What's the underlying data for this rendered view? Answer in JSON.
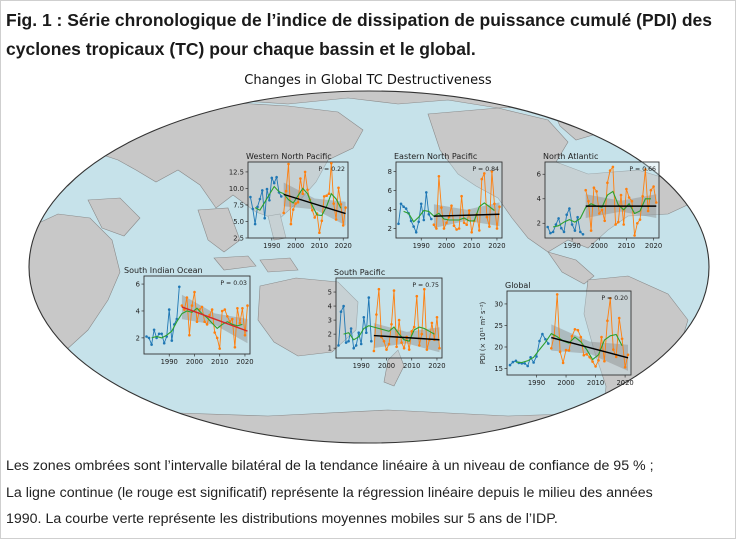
{
  "figure": {
    "title_line1": "Fig. 1 : Série chronologique de l’indice de dissipation de puissance cumulé (PDI) des",
    "title_line2": "cyclones tropicaux (TC) pour chaque bassin et le global.",
    "map_title": "Changes in Global TC Destructiveness",
    "caption_line1": "Les zones ombrées sont l’intervalle bilatéral de la tendance linéaire à un niveau de confiance de 95 % ;",
    "caption_line2": "La ligne continue (le rouge est significatif) représente la régression linéaire depuis le milieu des années",
    "caption_line3": "1990. La courbe verte représente les distributions moyennes mobiles sur 5 ans de l’IDP."
  },
  "colors": {
    "ocean": "#c6e2ea",
    "land": "#c8c8c8",
    "early_series": "#1f77b4",
    "late_series": "#ff7f0e",
    "moving_average": "#2ca02c",
    "trend_significant": "#d62728",
    "trend_not_significant": "#000000",
    "confidence_band": "#8c8c8c"
  },
  "chart_data": [
    {
      "type": "line",
      "title": "Western North Pacific",
      "p_label": "P = 0.22",
      "significant": false,
      "xlim": [
        1980,
        2022
      ],
      "ylim": [
        2.5,
        14
      ],
      "xticks": [
        1990,
        2000,
        2010,
        2020
      ],
      "xtick_labels": [
        "1990",
        "2000",
        "2010",
        "2020"
      ],
      "yticks": [
        2.5,
        5.0,
        7.5,
        10.0,
        12.5
      ],
      "ytick_labels": [
        "2.5",
        "5.0",
        "7.5",
        "10.0",
        "12.5"
      ],
      "series": [
        {
          "x": [
            1981,
            1982,
            1983,
            1984,
            1985,
            1986,
            1987,
            1988,
            1989,
            1990,
            1991,
            1992,
            1993,
            1994
          ],
          "values": [
            8.7,
            6.9,
            4.6,
            7.2,
            8.4,
            9.7,
            5.5,
            9.9,
            8.2,
            11.6,
            10.8,
            11.7,
            9.4,
            8.8
          ]
        },
        {
          "x": [
            1995,
            1996,
            1997,
            1998,
            1999,
            2000,
            2001,
            2002,
            2003,
            2004,
            2005,
            2006,
            2007,
            2008,
            2009,
            2010,
            2011,
            2012,
            2013,
            2014,
            2015,
            2016,
            2017,
            2018,
            2019,
            2020,
            2021
          ],
          "values": [
            6.3,
            9.6,
            13.7,
            4.6,
            6.8,
            7.7,
            7.9,
            11.5,
            9.2,
            12.5,
            9.8,
            8.3,
            6.7,
            5.6,
            6.2,
            3.3,
            5.1,
            8.8,
            8.9,
            9.2,
            13.8,
            7.7,
            5.3,
            10.1,
            7.6,
            4.4,
            7.1
          ]
        },
        {
          "x": [
            1983,
            1985,
            1987,
            1989,
            1991,
            1993,
            1995,
            1997,
            1999,
            2001,
            2003,
            2005,
            2007,
            2009,
            2011,
            2013,
            2015,
            2017,
            2019
          ],
          "values": [
            7.1,
            6.7,
            7.9,
            9.1,
            10.3,
            9.5,
            9.2,
            8.3,
            7.8,
            8.9,
            10.0,
            9.2,
            7.4,
            6.0,
            5.9,
            7.3,
            9.2,
            8.4,
            7.0
          ]
        }
      ],
      "trend": {
        "x": [
          1995,
          2021
        ],
        "values": [
          9.1,
          6.2
        ]
      }
    },
    {
      "type": "line",
      "title": "Eastern North Pacific",
      "p_label": "P = 0.84",
      "significant": false,
      "xlim": [
        1980,
        2022
      ],
      "ylim": [
        1,
        9
      ],
      "xticks": [
        1990,
        2000,
        2010,
        2020
      ],
      "xtick_labels": [
        "1990",
        "2000",
        "2010",
        "2020"
      ],
      "yticks": [
        2,
        4,
        6,
        8
      ],
      "ytick_labels": [
        "2",
        "4",
        "6",
        "8"
      ],
      "series": [
        {
          "x": [
            1981,
            1982,
            1983,
            1984,
            1985,
            1986,
            1987,
            1988,
            1989,
            1990,
            1991,
            1992,
            1993,
            1994
          ],
          "values": [
            2.5,
            4.6,
            4.3,
            4.1,
            3.6,
            2.8,
            2.2,
            1.6,
            2.7,
            4.6,
            2.9,
            5.8,
            3.5,
            3.0
          ]
        },
        {
          "x": [
            1995,
            1996,
            1997,
            1998,
            1999,
            2000,
            2001,
            2002,
            2003,
            2004,
            2005,
            2006,
            2007,
            2008,
            2009,
            2010,
            2011,
            2012,
            2013,
            2014,
            2015,
            2016,
            2017,
            2018,
            2019,
            2020,
            2021
          ],
          "values": [
            2.4,
            2.0,
            7.5,
            4.2,
            2.0,
            2.6,
            3.2,
            4.4,
            2.3,
            1.9,
            2.0,
            5.4,
            2.6,
            2.4,
            3.9,
            1.6,
            2.8,
            3.5,
            1.8,
            7.2,
            7.8,
            3.2,
            2.2,
            8.0,
            4.6,
            2.0,
            4.3
          ]
        },
        {
          "x": [
            1983,
            1985,
            1987,
            1989,
            1991,
            1993,
            1995,
            1997,
            1999,
            2001,
            2003,
            2005,
            2007,
            2009,
            2011,
            2013,
            2015,
            2017,
            2019
          ],
          "values": [
            3.8,
            3.6,
            2.7,
            3.2,
            3.9,
            3.8,
            3.3,
            3.6,
            3.0,
            2.9,
            2.9,
            2.9,
            3.1,
            2.8,
            2.8,
            4.3,
            4.7,
            4.3,
            3.9
          ]
        }
      ],
      "trend": {
        "x": [
          1995,
          2021
        ],
        "values": [
          3.3,
          3.5
        ]
      }
    },
    {
      "type": "line",
      "title": "North Atlantic",
      "p_label": "P = 0.66",
      "significant": false,
      "xlim": [
        1980,
        2022
      ],
      "ylim": [
        0.8,
        7
      ],
      "xticks": [
        1990,
        2000,
        2010,
        2020
      ],
      "xtick_labels": [
        "1990",
        "2000",
        "2010",
        "2020"
      ],
      "yticks": [
        2,
        4,
        6
      ],
      "ytick_labels": [
        "2",
        "4",
        "6"
      ],
      "series": [
        {
          "x": [
            1981,
            1982,
            1983,
            1984,
            1985,
            1986,
            1987,
            1988,
            1989,
            1990,
            1991,
            1992,
            1993,
            1994
          ],
          "values": [
            1.7,
            1.2,
            1.3,
            1.9,
            2.4,
            1.6,
            1.3,
            2.7,
            3.2,
            1.9,
            1.4,
            2.5,
            1.3,
            1.1
          ]
        },
        {
          "x": [
            1995,
            1996,
            1997,
            1998,
            1999,
            2000,
            2001,
            2002,
            2003,
            2004,
            2005,
            2006,
            2007,
            2008,
            2009,
            2010,
            2011,
            2012,
            2013,
            2014,
            2015,
            2016,
            2017,
            2018,
            2019,
            2020,
            2021
          ],
          "values": [
            4.7,
            3.8,
            1.4,
            4.9,
            4.6,
            2.8,
            3.1,
            2.2,
            5.3,
            6.3,
            6.6,
            1.9,
            2.1,
            4.3,
            1.9,
            4.8,
            4.1,
            3.8,
            1.0,
            2.0,
            2.3,
            4.2,
            6.4,
            3.0,
            4.7,
            5.0,
            3.7
          ]
        },
        {
          "x": [
            1983,
            1985,
            1987,
            1989,
            1991,
            1993,
            1995,
            1997,
            1999,
            2001,
            2003,
            2005,
            2007,
            2009,
            2011,
            2013,
            2015,
            2017,
            2019
          ],
          "values": [
            1.7,
            1.8,
            2.1,
            2.3,
            2.1,
            2.4,
            3.3,
            3.6,
            3.4,
            3.3,
            4.3,
            4.6,
            3.5,
            3.1,
            3.6,
            2.8,
            3.0,
            4.0,
            4.0
          ]
        }
      ],
      "trend": {
        "x": [
          1995,
          2021
        ],
        "values": [
          3.4,
          3.4
        ]
      }
    },
    {
      "type": "line",
      "title": "South Indian Ocean",
      "p_label": "P = 0.03",
      "significant": true,
      "xlim": [
        1980,
        2022
      ],
      "ylim": [
        0.8,
        6.6
      ],
      "xticks": [
        1990,
        2000,
        2010,
        2020
      ],
      "xtick_labels": [
        "1990",
        "2000",
        "2010",
        "2020"
      ],
      "yticks": [
        2,
        4,
        6
      ],
      "ytick_labels": [
        "2",
        "4",
        "6"
      ],
      "series": [
        {
          "x": [
            1981,
            1982,
            1983,
            1984,
            1985,
            1986,
            1987,
            1988,
            1989,
            1990,
            1991,
            1992,
            1993,
            1994
          ],
          "values": [
            2.1,
            2.0,
            1.5,
            2.6,
            2.0,
            2.3,
            2.3,
            1.6,
            2.1,
            4.1,
            1.8,
            3.0,
            3.4,
            5.8
          ]
        },
        {
          "x": [
            1995,
            1996,
            1997,
            1998,
            1999,
            2000,
            2001,
            2002,
            2003,
            2004,
            2005,
            2006,
            2007,
            2008,
            2009,
            2010,
            2011,
            2012,
            2013,
            2014,
            2015,
            2016,
            2017,
            2018,
            2019,
            2020,
            2021
          ],
          "values": [
            4.4,
            4.1,
            5.0,
            2.2,
            4.4,
            5.4,
            3.2,
            4.1,
            4.3,
            3.2,
            3.0,
            3.7,
            4.1,
            2.4,
            2.0,
            1.2,
            4.0,
            4.1,
            3.6,
            3.2,
            3.4,
            1.3,
            4.2,
            3.1,
            4.2,
            2.2,
            4.4
          ]
        },
        {
          "x": [
            1983,
            1985,
            1987,
            1989,
            1991,
            1993,
            1995,
            1997,
            1999,
            2001,
            2003,
            2005,
            2007,
            2009,
            2011,
            2013,
            2015,
            2017,
            2019
          ],
          "values": [
            2.0,
            2.1,
            2.0,
            2.2,
            2.5,
            3.2,
            3.8,
            4.0,
            3.9,
            4.2,
            3.8,
            3.5,
            3.1,
            2.7,
            3.0,
            3.2,
            3.0,
            2.9,
            3.0
          ]
        }
      ],
      "trend": {
        "x": [
          1995,
          2021
        ],
        "values": [
          4.3,
          2.5
        ]
      }
    },
    {
      "type": "line",
      "title": "South Pacific",
      "p_label": "P = 0.75",
      "significant": false,
      "xlim": [
        1980,
        2022
      ],
      "ylim": [
        0.3,
        6
      ],
      "xticks": [
        1990,
        2000,
        2010,
        2020
      ],
      "xtick_labels": [
        "1990",
        "2000",
        "2010",
        "2020"
      ],
      "yticks": [
        1,
        2,
        3,
        4,
        5
      ],
      "ytick_labels": [
        "1",
        "2",
        "3",
        "4",
        "5"
      ],
      "series": [
        {
          "x": [
            1981,
            1982,
            1983,
            1984,
            1985,
            1986,
            1987,
            1988,
            1989,
            1990,
            1991,
            1992,
            1993,
            1994
          ],
          "values": [
            1.2,
            3.6,
            4.0,
            1.4,
            1.5,
            2.4,
            1.0,
            1.2,
            2.1,
            1.3,
            3.2,
            2.1,
            4.6,
            1.5
          ]
        },
        {
          "x": [
            1995,
            1996,
            1997,
            1998,
            1999,
            2000,
            2001,
            2002,
            2003,
            2004,
            2005,
            2006,
            2007,
            2008,
            2009,
            2010,
            2011,
            2012,
            2013,
            2014,
            2015,
            2016,
            2017,
            2018,
            2019,
            2020,
            2021
          ],
          "values": [
            0.8,
            3.4,
            5.2,
            1.8,
            1.5,
            0.9,
            1.3,
            2.7,
            5.1,
            1.1,
            3.0,
            1.4,
            1.0,
            1.8,
            0.9,
            2.2,
            2.5,
            4.7,
            1.2,
            2.0,
            5.2,
            0.9,
            1.6,
            2.8,
            1.6,
            3.2,
            1.0
          ]
        },
        {
          "x": [
            1983,
            1985,
            1987,
            1989,
            1991,
            1993,
            1995,
            1997,
            1999,
            2001,
            2003,
            2005,
            2007,
            2009,
            2011,
            2013,
            2015,
            2017,
            2019
          ],
          "values": [
            2.0,
            2.1,
            1.6,
            1.8,
            2.4,
            2.6,
            2.5,
            2.4,
            2.3,
            2.2,
            2.5,
            2.0,
            1.6,
            1.5,
            2.3,
            2.5,
            2.4,
            2.2,
            2.0
          ]
        }
      ],
      "trend": {
        "x": [
          1995,
          2021
        ],
        "values": [
          1.9,
          1.6
        ]
      }
    },
    {
      "type": "line",
      "title": "Global",
      "p_label": "P = 0.20",
      "ylabel": "PDI (× 10¹¹ m³ s⁻²)",
      "significant": false,
      "xlim": [
        1980,
        2022
      ],
      "ylim": [
        13.5,
        33
      ],
      "xticks": [
        1990,
        2000,
        2010,
        2020
      ],
      "xtick_labels": [
        "1990",
        "2000",
        "2010",
        "2020"
      ],
      "yticks": [
        15,
        20,
        25,
        30
      ],
      "ytick_labels": [
        "15",
        "20",
        "25",
        "30"
      ],
      "series": [
        {
          "x": [
            1981,
            1982,
            1983,
            1984,
            1985,
            1986,
            1987,
            1988,
            1989,
            1990,
            1991,
            1992,
            1993,
            1994
          ],
          "values": [
            15.8,
            16.5,
            16.8,
            16.3,
            16.2,
            16.2,
            15.6,
            17.6,
            16.4,
            17.8,
            21.4,
            23.0,
            21.8,
            20.8
          ]
        },
        {
          "x": [
            1995,
            1996,
            1997,
            1998,
            1999,
            2000,
            2001,
            2002,
            2003,
            2004,
            2005,
            2006,
            2007,
            2008,
            2009,
            2010,
            2011,
            2012,
            2013,
            2014,
            2015,
            2016,
            2017,
            2018,
            2019,
            2020,
            2021
          ],
          "values": [
            19.7,
            22.7,
            32.2,
            18.9,
            16.3,
            19.3,
            19.2,
            22.5,
            24.1,
            23.9,
            22.3,
            18.1,
            18.3,
            17.6,
            16.6,
            15.5,
            16.9,
            22.3,
            16.7,
            26.1,
            31.3,
            19.4,
            17.7,
            26.7,
            21.9,
            15.3,
            18.2
          ]
        },
        {
          "x": [
            1983,
            1985,
            1987,
            1989,
            1991,
            1993,
            1995,
            1997,
            1999,
            2001,
            2003,
            2005,
            2007,
            2009,
            2011,
            2013,
            2015,
            2017,
            2019
          ],
          "values": [
            16.5,
            16.4,
            16.8,
            17.6,
            19.4,
            21.1,
            23.1,
            22.4,
            21.4,
            20.9,
            22.3,
            21.2,
            19.4,
            17.1,
            18.2,
            21.6,
            22.6,
            22.9,
            20.3
          ]
        }
      ],
      "trend": {
        "x": [
          1995,
          2021
        ],
        "values": [
          22.2,
          17.5
        ]
      }
    }
  ]
}
